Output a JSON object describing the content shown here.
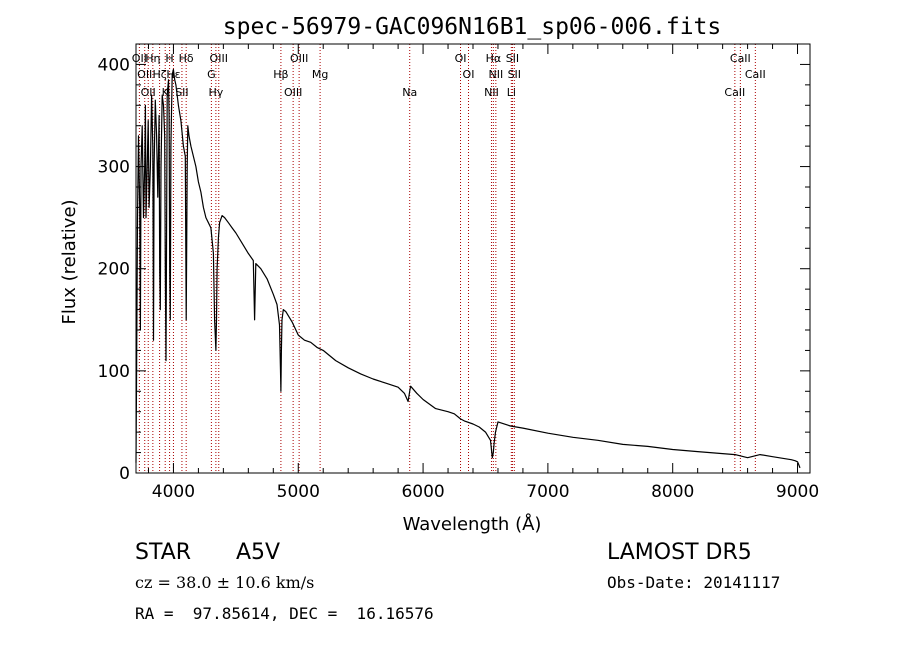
{
  "chart_data": {
    "type": "line",
    "title": "spec-56979-GAC096N16B1_sp06-006.fits",
    "xlabel": "Wavelength (Å)",
    "ylabel": "Flux (relative)",
    "xlim": [
      3700,
      9100
    ],
    "ylim": [
      0,
      420
    ],
    "xticks": [
      4000,
      5000,
      6000,
      7000,
      8000,
      9000
    ],
    "yticks": [
      0,
      100,
      200,
      300,
      400
    ],
    "grid": false,
    "line_color": "#000000",
    "marker_color": "#aa0000",
    "series": [
      {
        "x": [
          3700,
          3705,
          3712,
          3720,
          3730,
          3735,
          3740,
          3750,
          3760,
          3770,
          3775,
          3780,
          3790,
          3798,
          3805,
          3815,
          3825,
          3835,
          3840,
          3845,
          3855,
          3865,
          3875,
          3885,
          3890,
          3895,
          3900,
          3910,
          3920,
          3930,
          3935,
          3940,
          3945,
          3950,
          3960,
          3965,
          3970,
          3975,
          3980,
          3990,
          4000,
          4010,
          4020,
          4040,
          4060,
          4080,
          4095,
          4102,
          4110,
          4115,
          4125,
          4140,
          4160,
          4180,
          4200,
          4220,
          4240,
          4260,
          4280,
          4300,
          4320,
          4330,
          4340,
          4345,
          4350,
          4360,
          4370,
          4390,
          4410,
          4440,
          4470,
          4500,
          4550,
          4600,
          4640,
          4650,
          4660,
          4700,
          4750,
          4800,
          4830,
          4850,
          4858,
          4861,
          4865,
          4870,
          4880,
          4900,
          4950,
          5000,
          5050,
          5100,
          5150,
          5200,
          5300,
          5400,
          5500,
          5600,
          5700,
          5800,
          5850,
          5880,
          5893,
          5900,
          5950,
          6000,
          6100,
          6200,
          6250,
          6300,
          6330,
          6400,
          6450,
          6500,
          6540,
          6555,
          6563,
          6570,
          6580,
          6600,
          6700,
          6800,
          7000,
          7200,
          7400,
          7600,
          7800,
          8000,
          8200,
          8400,
          8500,
          8600,
          8700,
          8800,
          8900,
          8950,
          8980,
          9000,
          9010,
          9020
        ],
        "y": [
          10,
          100,
          250,
          330,
          260,
          140,
          300,
          340,
          250,
          300,
          360,
          250,
          300,
          345,
          260,
          300,
          370,
          320,
          130,
          300,
          365,
          330,
          270,
          350,
          200,
          160,
          300,
          370,
          360,
          330,
          200,
          110,
          240,
          370,
          385,
          350,
          200,
          150,
          320,
          390,
          395,
          385,
          380,
          360,
          345,
          320,
          310,
          150,
          300,
          340,
          330,
          320,
          310,
          300,
          285,
          275,
          260,
          250,
          245,
          240,
          215,
          150,
          120,
          150,
          200,
          230,
          245,
          252,
          250,
          245,
          240,
          235,
          225,
          215,
          208,
          150,
          205,
          200,
          190,
          175,
          165,
          145,
          100,
          80,
          120,
          150,
          160,
          158,
          148,
          135,
          130,
          128,
          123,
          120,
          110,
          103,
          97,
          92,
          88,
          84,
          78,
          70,
          80,
          85,
          78,
          72,
          63,
          60,
          58,
          53,
          51,
          48,
          45,
          40,
          32,
          15,
          20,
          30,
          40,
          50,
          46,
          44,
          39,
          35,
          32,
          28,
          26,
          23,
          21,
          19,
          18,
          15,
          18,
          16,
          14,
          13,
          12,
          11,
          8,
          5
        ]
      }
    ],
    "line_markers": [
      {
        "x": 3727,
        "label": "OII"
      },
      {
        "x": 3770,
        "label": "OII"
      },
      {
        "x": 3798,
        "label": "OII"
      },
      {
        "x": 3835,
        "label": "Hη"
      },
      {
        "x": 3889,
        "label": "Hζ"
      },
      {
        "x": 3934,
        "label": "K"
      },
      {
        "x": 3969,
        "label": "H"
      },
      {
        "x": 4000,
        "label": "Hε"
      },
      {
        "x": 4068,
        "label": "SII"
      },
      {
        "x": 4102,
        "label": "Hδ"
      },
      {
        "x": 4304,
        "label": "G"
      },
      {
        "x": 4340,
        "label": "Hγ"
      },
      {
        "x": 4363,
        "label": "OIII"
      },
      {
        "x": 4861,
        "label": "Hβ"
      },
      {
        "x": 4959,
        "label": "OIII"
      },
      {
        "x": 5007,
        "label": "OIII"
      },
      {
        "x": 5175,
        "label": "Mg"
      },
      {
        "x": 5893,
        "label": "Na"
      },
      {
        "x": 6300,
        "label": "OI"
      },
      {
        "x": 6364,
        "label": "OI"
      },
      {
        "x": 6548,
        "label": "NII"
      },
      {
        "x": 6563,
        "label": "Hα"
      },
      {
        "x": 6583,
        "label": "NII"
      },
      {
        "x": 6707,
        "label": "Li"
      },
      {
        "x": 6716,
        "label": "SII"
      },
      {
        "x": 6731,
        "label": "SII"
      },
      {
        "x": 8498,
        "label": "CaII"
      },
      {
        "x": 8542,
        "label": "CaII"
      },
      {
        "x": 8662,
        "label": "CaII"
      }
    ]
  },
  "info": {
    "object_class": "STAR",
    "subclass": "A5V",
    "redshift": "cz = 38.0 ± 10.6 km/s",
    "coords": "RA =  97.85614, DEC =  16.16576",
    "survey": "LAMOST DR5",
    "obs_date": "Obs-Date: 20141117"
  }
}
